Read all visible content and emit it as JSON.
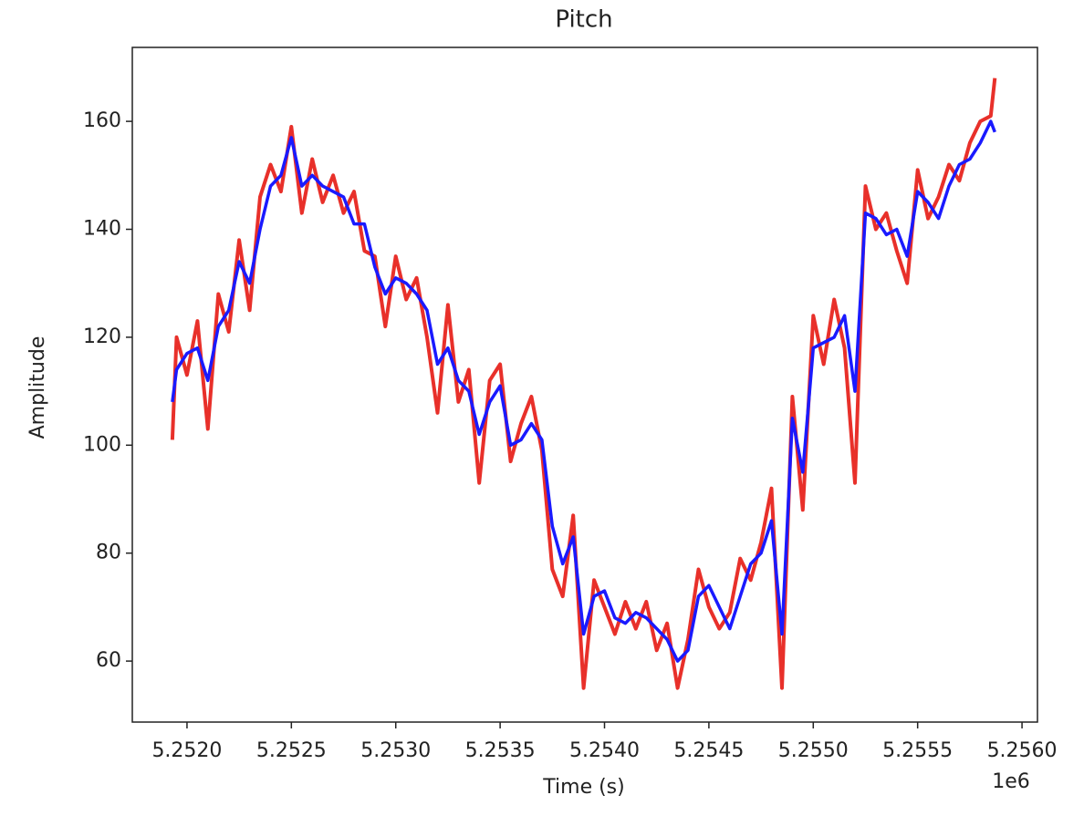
{
  "chart_data": {
    "type": "line",
    "title": "Pitch",
    "x_label": "Time (s)",
    "y_label": "Amplitude",
    "x_offset_label": "1e6",
    "x": [
      5251930,
      5251950,
      5252000,
      5252050,
      5252100,
      5252150,
      5252200,
      5252250,
      5252300,
      5252350,
      5252400,
      5252450,
      5252500,
      5252550,
      5252600,
      5252650,
      5252700,
      5252750,
      5252800,
      5252850,
      5252900,
      5252950,
      5253000,
      5253050,
      5253100,
      5253150,
      5253200,
      5253250,
      5253300,
      5253350,
      5253400,
      5253450,
      5253500,
      5253550,
      5253600,
      5253650,
      5253700,
      5253750,
      5253800,
      5253850,
      5253900,
      5253950,
      5254000,
      5254050,
      5254100,
      5254150,
      5254200,
      5254250,
      5254300,
      5254350,
      5254400,
      5254450,
      5254500,
      5254550,
      5254600,
      5254650,
      5254700,
      5254750,
      5254800,
      5254850,
      5254900,
      5254950,
      5255000,
      5255050,
      5255100,
      5255150,
      5255200,
      5255250,
      5255300,
      5255350,
      5255400,
      5255450,
      5255500,
      5255550,
      5255600,
      5255650,
      5255700,
      5255750,
      5255800,
      5255850,
      5255870
    ],
    "series": [
      {
        "color": "#e8302a",
        "values": [
          101,
          120,
          113,
          123,
          103,
          128,
          121,
          138,
          125,
          146,
          152,
          147,
          159,
          143,
          153,
          145,
          150,
          143,
          147,
          136,
          135,
          122,
          135,
          127,
          131,
          120,
          106,
          126,
          108,
          114,
          93,
          112,
          115,
          97,
          104,
          109,
          99,
          77,
          72,
          87,
          55,
          75,
          70,
          65,
          71,
          66,
          71,
          62,
          67,
          55,
          64,
          77,
          70,
          66,
          69,
          79,
          75,
          82,
          92,
          55,
          109,
          88,
          124,
          115,
          127,
          118,
          93,
          148,
          140,
          143,
          136,
          130,
          151,
          142,
          146,
          152,
          149,
          156,
          160,
          161,
          168
        ]
      },
      {
        "color": "#1a1aff",
        "values": [
          108,
          114,
          117,
          118,
          112,
          122,
          125,
          134,
          130,
          140,
          148,
          150,
          157,
          148,
          150,
          148,
          147,
          146,
          141,
          141,
          133,
          128,
          131,
          130,
          128,
          125,
          115,
          118,
          112,
          110,
          102,
          108,
          111,
          100,
          101,
          104,
          101,
          85,
          78,
          83,
          65,
          72,
          73,
          68,
          67,
          69,
          68,
          66,
          64,
          60,
          62,
          72,
          74,
          70,
          66,
          72,
          78,
          80,
          86,
          65,
          105,
          95,
          118,
          119,
          120,
          124,
          110,
          143,
          142,
          139,
          140,
          135,
          147,
          145,
          142,
          148,
          152,
          153,
          156,
          160,
          158
        ]
      }
    ],
    "xlim": [
      5251738,
      5256074
    ],
    "ylim": [
      48.7,
      173.7
    ],
    "xticks": [
      {
        "value": 5252000,
        "label": "5.2520"
      },
      {
        "value": 5252500,
        "label": "5.2525"
      },
      {
        "value": 5253000,
        "label": "5.2530"
      },
      {
        "value": 5253500,
        "label": "5.2535"
      },
      {
        "value": 5254000,
        "label": "5.2540"
      },
      {
        "value": 5254500,
        "label": "5.2545"
      },
      {
        "value": 5255000,
        "label": "5.2550"
      },
      {
        "value": 5255500,
        "label": "5.2555"
      },
      {
        "value": 5256000,
        "label": "5.2560"
      }
    ],
    "yticks": [
      60,
      80,
      100,
      120,
      140,
      160
    ]
  }
}
